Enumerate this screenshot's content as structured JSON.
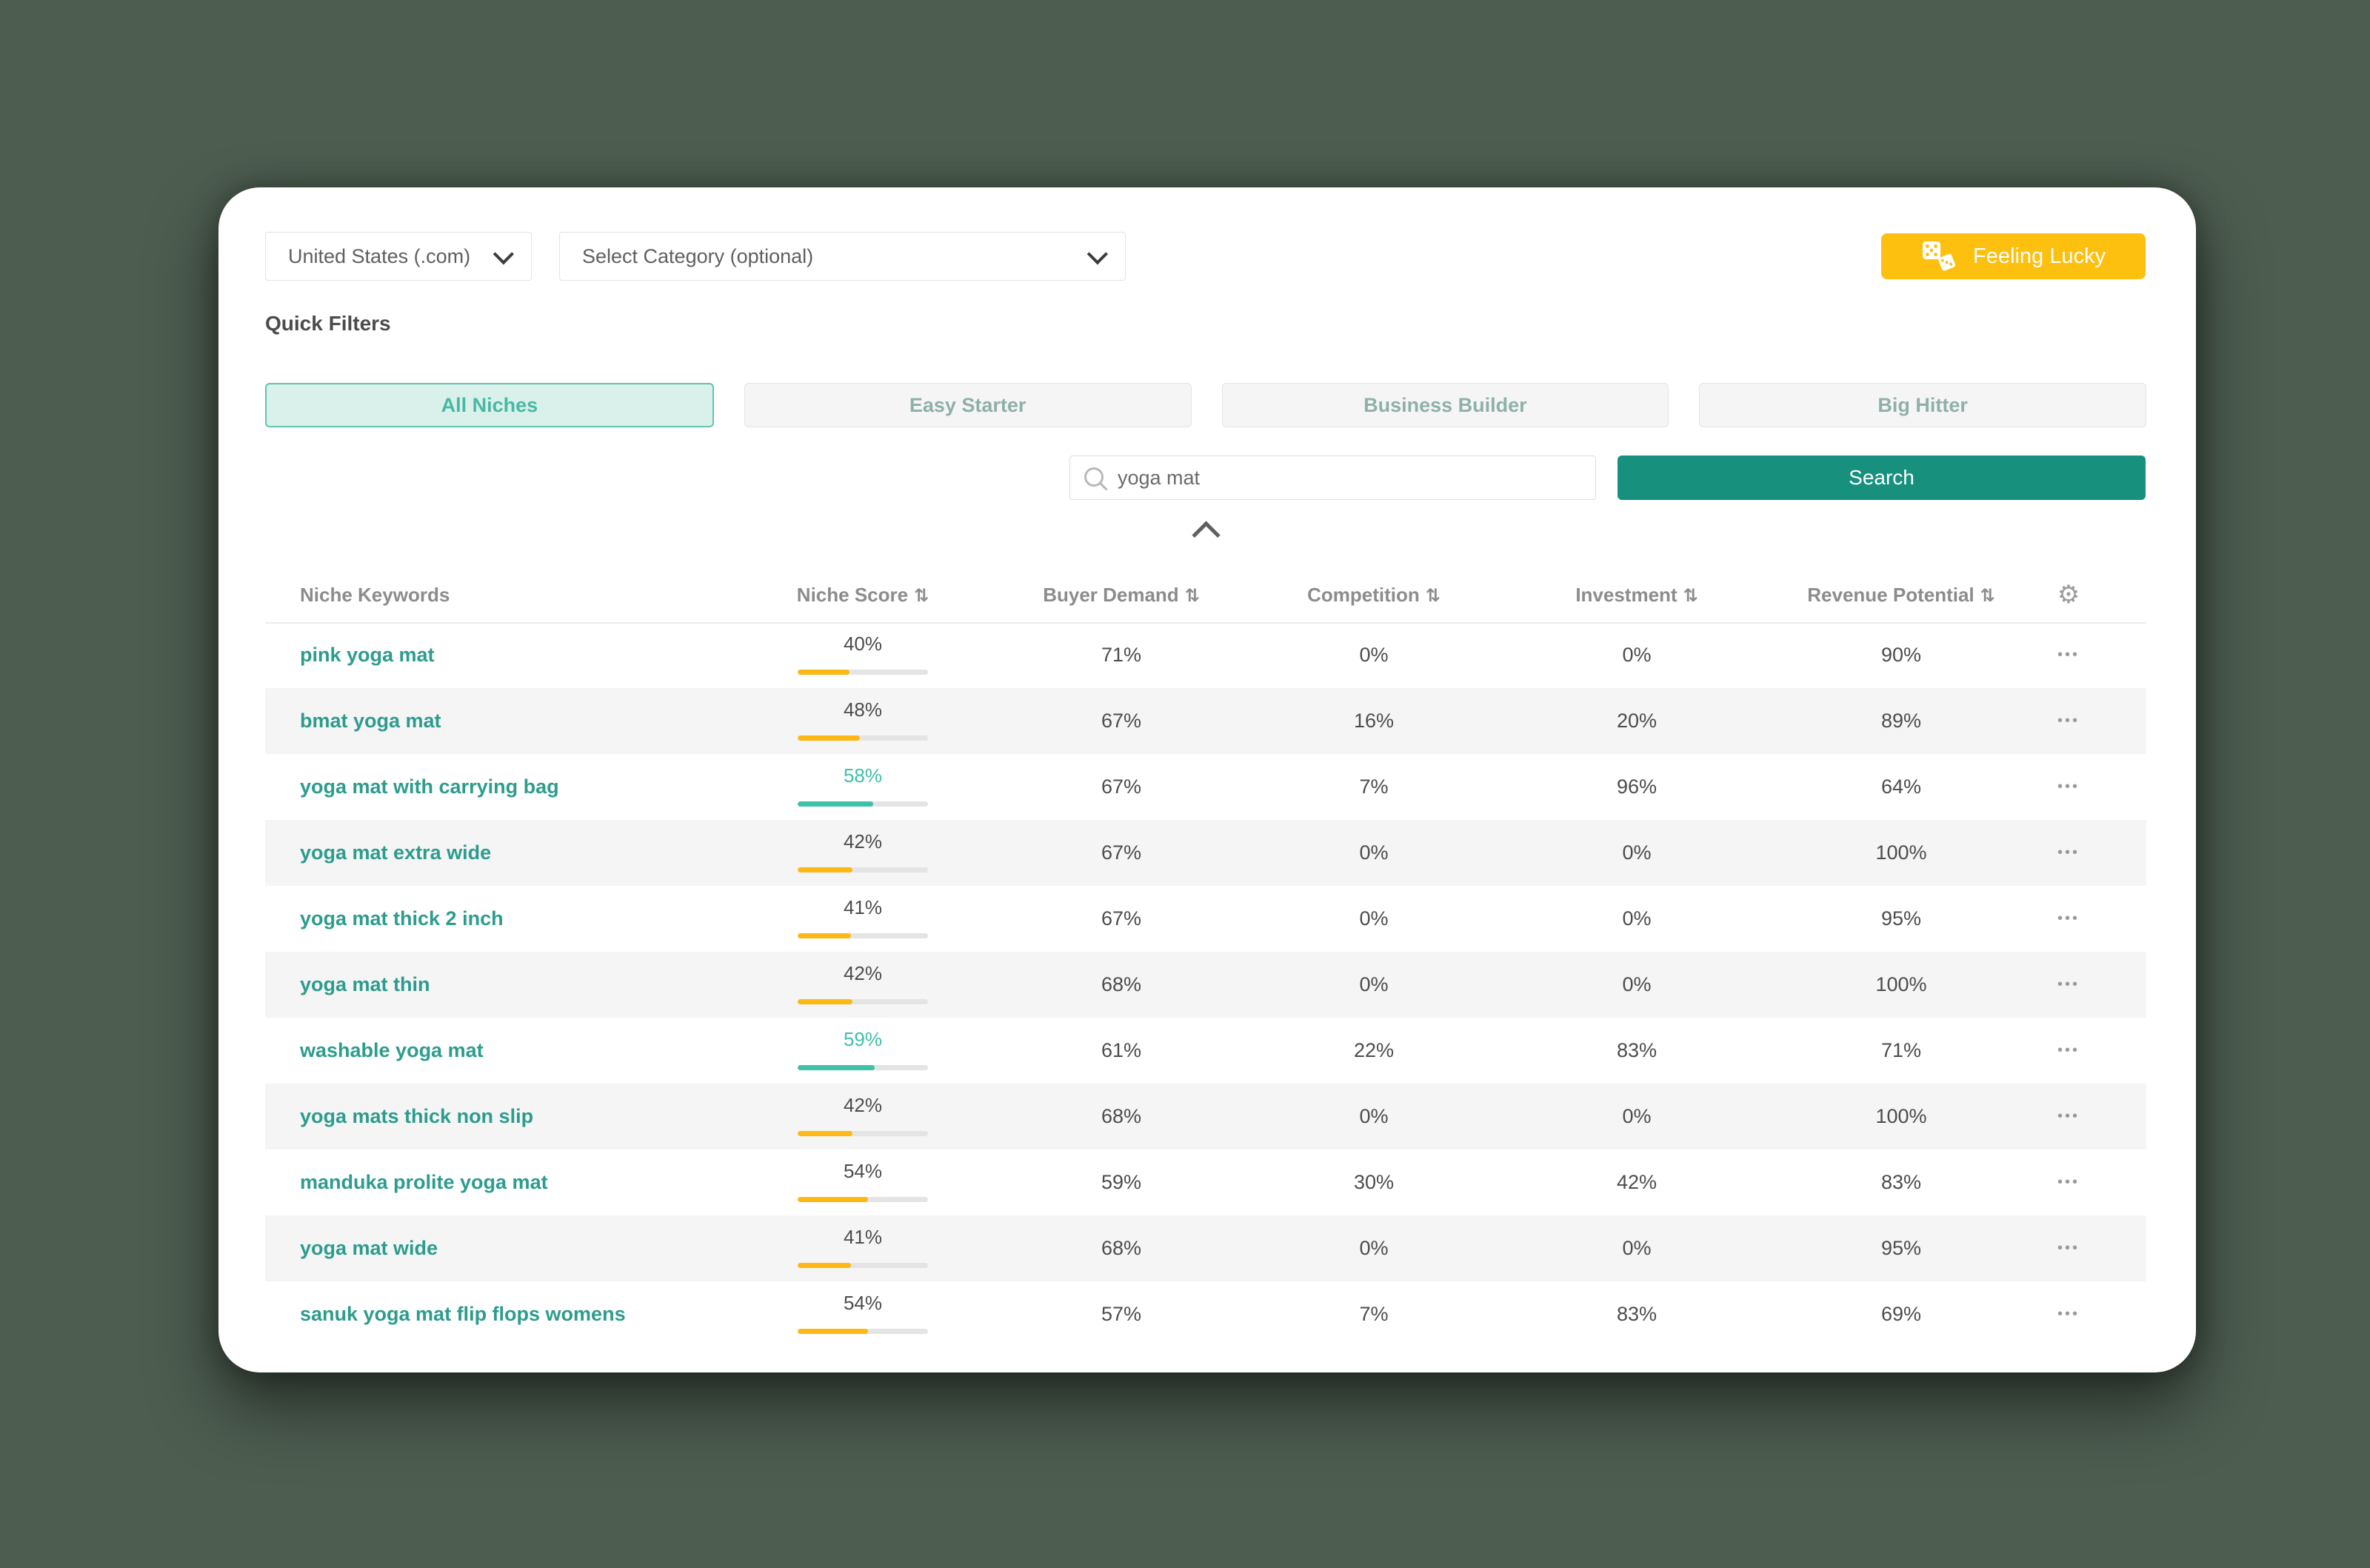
{
  "page": {
    "background_color": "#4d5d50",
    "card_color": "#ffffff"
  },
  "toolbar": {
    "country_select": {
      "value": "United States (.com)"
    },
    "category_select": {
      "placeholder": "Select Category (optional)"
    },
    "feeling_lucky": {
      "label": "Feeling Lucky",
      "color": "#fdc00f"
    }
  },
  "quick_filters": {
    "title": "Quick Filters",
    "buttons": [
      {
        "label": "All Niches",
        "active": true
      },
      {
        "label": "Easy Starter",
        "active": false
      },
      {
        "label": "Business Builder",
        "active": false
      },
      {
        "label": "Big Hitter",
        "active": false
      }
    ]
  },
  "search": {
    "value": "yoga mat",
    "button_label": "Search",
    "button_color": "#17907e"
  },
  "icons": {
    "sort": "⇅",
    "gear": "⚙",
    "row_menu": "•••"
  },
  "colors": {
    "accent_teal": "#17907e",
    "keyword_teal": "#2d9c8d",
    "score_amber": "#fdb815",
    "score_teal": "#3ec0a9",
    "active_filter_bg": "#d9f1ea",
    "active_filter_border": "#5fc5af",
    "row_stripe": "#f5f5f5"
  },
  "table": {
    "columns": [
      "Niche Keywords",
      "Niche Score",
      "Buyer Demand",
      "Competition",
      "Investment",
      "Revenue Potential"
    ],
    "rows": [
      {
        "keyword": "pink yoga mat",
        "niche_score": 40,
        "score_color": "amber",
        "buyer_demand": "71%",
        "competition": "0%",
        "investment": "0%",
        "revenue_potential": "90%"
      },
      {
        "keyword": "bmat yoga mat",
        "niche_score": 48,
        "score_color": "amber",
        "buyer_demand": "67%",
        "competition": "16%",
        "investment": "20%",
        "revenue_potential": "89%"
      },
      {
        "keyword": "yoga mat with carrying bag",
        "niche_score": 58,
        "score_color": "teal",
        "buyer_demand": "67%",
        "competition": "7%",
        "investment": "96%",
        "revenue_potential": "64%"
      },
      {
        "keyword": "yoga mat extra wide",
        "niche_score": 42,
        "score_color": "amber",
        "buyer_demand": "67%",
        "competition": "0%",
        "investment": "0%",
        "revenue_potential": "100%"
      },
      {
        "keyword": "yoga mat thick 2 inch",
        "niche_score": 41,
        "score_color": "amber",
        "buyer_demand": "67%",
        "competition": "0%",
        "investment": "0%",
        "revenue_potential": "95%"
      },
      {
        "keyword": "yoga mat thin",
        "niche_score": 42,
        "score_color": "amber",
        "buyer_demand": "68%",
        "competition": "0%",
        "investment": "0%",
        "revenue_potential": "100%"
      },
      {
        "keyword": "washable yoga mat",
        "niche_score": 59,
        "score_color": "teal",
        "buyer_demand": "61%",
        "competition": "22%",
        "investment": "83%",
        "revenue_potential": "71%"
      },
      {
        "keyword": "yoga mats thick non slip",
        "niche_score": 42,
        "score_color": "amber",
        "buyer_demand": "68%",
        "competition": "0%",
        "investment": "0%",
        "revenue_potential": "100%"
      },
      {
        "keyword": "manduka prolite yoga mat",
        "niche_score": 54,
        "score_color": "amber",
        "buyer_demand": "59%",
        "competition": "30%",
        "investment": "42%",
        "revenue_potential": "83%"
      },
      {
        "keyword": "yoga mat wide",
        "niche_score": 41,
        "score_color": "amber",
        "buyer_demand": "68%",
        "competition": "0%",
        "investment": "0%",
        "revenue_potential": "95%"
      },
      {
        "keyword": "sanuk yoga mat flip flops womens",
        "niche_score": 54,
        "score_color": "amber",
        "buyer_demand": "57%",
        "competition": "7%",
        "investment": "83%",
        "revenue_potential": "69%"
      }
    ]
  }
}
